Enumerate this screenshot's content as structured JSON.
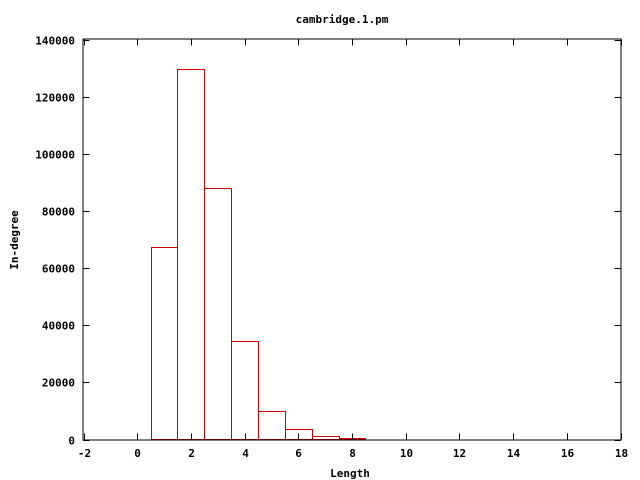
{
  "chart_data": {
    "type": "bar",
    "title": "cambridge.1.pm",
    "xlabel": "Length",
    "ylabel": "In-degree",
    "xlim": [
      -2,
      18
    ],
    "ylim": [
      0,
      140000
    ],
    "xticks": [
      -2,
      0,
      2,
      4,
      6,
      8,
      10,
      12,
      14,
      16,
      18
    ],
    "yticks": [
      0,
      20000,
      40000,
      60000,
      80000,
      100000,
      120000,
      140000
    ],
    "bar_width": 1,
    "x": [
      1,
      2,
      3,
      4,
      5,
      6,
      7,
      8,
      9
    ],
    "values": [
      67300,
      129600,
      87900,
      34600,
      10100,
      3800,
      1300,
      600,
      300
    ],
    "bar_style": "outline",
    "colors": {
      "bar": "#cc0000",
      "axes": "#000000"
    },
    "grid": false,
    "legend": "none"
  }
}
